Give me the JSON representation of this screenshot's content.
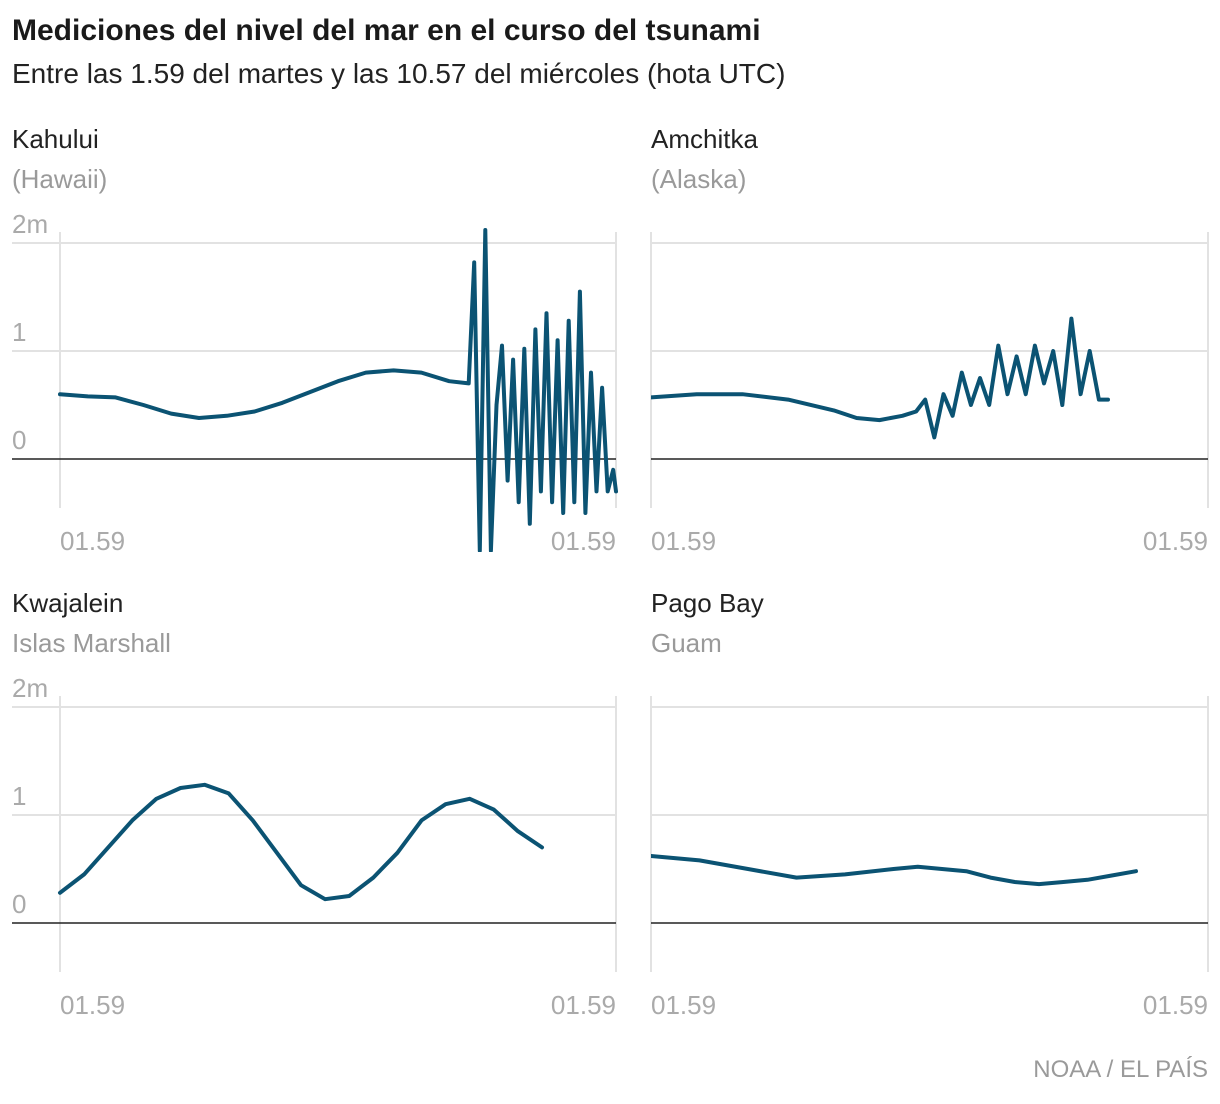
{
  "title": "Mediciones del nivel del mar en el curso del tsunami",
  "subtitle": "Entre las 1.59 del martes y las 10.57 del miércoles (hota UTC)",
  "source": "NOAA / EL PAÍS",
  "colors": {
    "line": "#0b5373",
    "grid": "#e2e2e2",
    "zero": "#222222",
    "label": "#aaaaaa"
  },
  "chart_data": [
    {
      "type": "line",
      "title": "Kahului",
      "subtitle": "(Hawaii)",
      "y_tick_labels": [
        "0",
        "1",
        "2m"
      ],
      "x_tick_labels": [
        "01.59",
        "01.59"
      ],
      "ylim": [
        -0.85,
        2.2
      ],
      "y_ticks": [
        0,
        1,
        2
      ],
      "grid": true,
      "x": [
        0,
        0.05,
        0.1,
        0.15,
        0.2,
        0.25,
        0.3,
        0.35,
        0.4,
        0.45,
        0.5,
        0.55,
        0.6,
        0.65,
        0.7,
        0.735,
        0.745,
        0.755,
        0.765,
        0.775,
        0.785,
        0.795,
        0.805,
        0.815,
        0.825,
        0.835,
        0.845,
        0.855,
        0.865,
        0.875,
        0.885,
        0.895,
        0.905,
        0.915,
        0.925,
        0.935,
        0.945,
        0.955,
        0.965,
        0.975,
        0.985,
        0.995,
        1.0
      ],
      "y": [
        0.6,
        0.58,
        0.57,
        0.5,
        0.42,
        0.38,
        0.4,
        0.44,
        0.52,
        0.62,
        0.72,
        0.8,
        0.82,
        0.8,
        0.72,
        0.7,
        1.82,
        -0.85,
        2.12,
        -0.85,
        0.5,
        1.05,
        -0.2,
        0.92,
        -0.4,
        1.02,
        -0.6,
        1.2,
        -0.3,
        1.35,
        -0.4,
        1.1,
        -0.5,
        1.28,
        -0.4,
        1.55,
        -0.5,
        0.8,
        -0.3,
        0.66,
        -0.3,
        -0.1,
        -0.3
      ]
    },
    {
      "type": "line",
      "title": "Amchitka",
      "subtitle": "(Alaska)",
      "x_tick_labels": [
        "01.59",
        "01.59"
      ],
      "ylim": [
        -0.85,
        2.2
      ],
      "y_ticks": [
        0,
        1,
        2
      ],
      "grid": true,
      "x": [
        0,
        0.1,
        0.2,
        0.3,
        0.4,
        0.45,
        0.5,
        0.55,
        0.58,
        0.6,
        0.62,
        0.64,
        0.66,
        0.68,
        0.7,
        0.72,
        0.74,
        0.76,
        0.78,
        0.8,
        0.82,
        0.84,
        0.86,
        0.88,
        0.9,
        0.92,
        0.94,
        0.96,
        0.98,
        1.0
      ],
      "y": [
        0.57,
        0.6,
        0.6,
        0.55,
        0.45,
        0.38,
        0.36,
        0.4,
        0.44,
        0.55,
        0.2,
        0.6,
        0.4,
        0.8,
        0.5,
        0.75,
        0.5,
        1.05,
        0.6,
        0.95,
        0.6,
        1.05,
        0.7,
        1.0,
        0.5,
        1.3,
        0.6,
        1.0,
        0.55,
        0.55
      ]
    },
    {
      "type": "line",
      "title": "Kwajalein",
      "subtitle": "Islas Marshall",
      "y_tick_labels": [
        "0",
        "1",
        "2m"
      ],
      "x_tick_labels": [
        "01.59",
        "01.59"
      ],
      "ylim": [
        -0.5,
        2.2
      ],
      "y_ticks": [
        0,
        1,
        2
      ],
      "grid": true,
      "x": [
        0,
        0.05,
        0.1,
        0.15,
        0.2,
        0.25,
        0.3,
        0.35,
        0.4,
        0.45,
        0.5,
        0.55,
        0.6,
        0.65,
        0.7,
        0.75,
        0.8,
        0.85,
        0.9,
        0.95,
        1.0
      ],
      "y": [
        0.28,
        0.45,
        0.7,
        0.95,
        1.15,
        1.25,
        1.28,
        1.2,
        0.95,
        0.65,
        0.35,
        0.22,
        0.25,
        0.42,
        0.65,
        0.95,
        1.1,
        1.15,
        1.05,
        0.85,
        0.7
      ]
    },
    {
      "type": "line",
      "title": "Pago Bay",
      "subtitle": "Guam",
      "x_tick_labels": [
        "01.59",
        "01.59"
      ],
      "ylim": [
        -0.5,
        2.2
      ],
      "y_ticks": [
        0,
        1,
        2
      ],
      "grid": true,
      "x": [
        0,
        0.1,
        0.2,
        0.3,
        0.4,
        0.5,
        0.55,
        0.6,
        0.65,
        0.7,
        0.75,
        0.8,
        0.85,
        0.9,
        0.95,
        1.0
      ],
      "y": [
        0.62,
        0.58,
        0.5,
        0.42,
        0.45,
        0.5,
        0.52,
        0.5,
        0.48,
        0.42,
        0.38,
        0.36,
        0.38,
        0.4,
        0.44,
        0.48
      ]
    }
  ]
}
